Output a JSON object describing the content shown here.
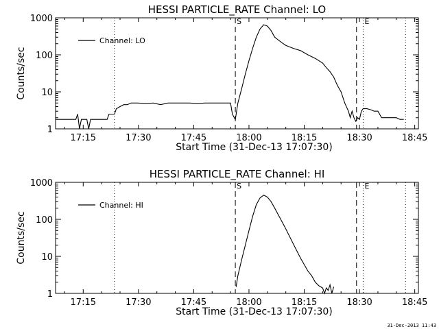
{
  "footer_timestamp": "31-Dec-2013 11:43",
  "chart_data": [
    {
      "type": "line",
      "title": "HESSI PARTICLE_RATE Channel: LO",
      "xlabel": "Start Time (31-Dec-13 17:07:30)",
      "ylabel": "Counts/sec",
      "y_scale": "log",
      "x_unit": "minutes of day",
      "xlim": [
        1027.5,
        1126
      ],
      "ylim": [
        1,
        1000
      ],
      "x_ticks": [
        1035,
        1050,
        1065,
        1080,
        1095,
        1110,
        1125
      ],
      "x_tick_labels": [
        "17:15",
        "17:30",
        "17:45",
        "18:00",
        "18:15",
        "18:30",
        "18:45"
      ],
      "y_ticks": [
        1,
        10,
        100,
        1000
      ],
      "y_tick_labels": [
        "1",
        "10",
        "100",
        "1000"
      ],
      "grid": false,
      "legend": {
        "position": "top-left",
        "entries": [
          "Channel: LO"
        ]
      },
      "vlines": [
        {
          "x": 1043.5,
          "style": "dotted"
        },
        {
          "x": 1076.3,
          "style": "dashed",
          "label": "S"
        },
        {
          "x": 1109.2,
          "style": "dashed"
        },
        {
          "x": 1111.0,
          "style": "dotted",
          "label": "E"
        },
        {
          "x": 1122.5,
          "style": "dotted"
        }
      ],
      "series": [
        {
          "name": "Channel: LO",
          "color": "#000000",
          "x": [
            1027.5,
            1030,
            1033,
            1033.5,
            1034,
            1034.5,
            1035,
            1036,
            1036.5,
            1037,
            1037.5,
            1038,
            1040,
            1041.5,
            1042,
            1043.5,
            1044,
            1045,
            1046,
            1047,
            1048,
            1050,
            1052,
            1054,
            1056,
            1058,
            1060,
            1062,
            1064,
            1066,
            1068,
            1070,
            1072,
            1074,
            1075,
            1075.5,
            1076,
            1076.3,
            1077,
            1078,
            1079,
            1080,
            1081,
            1082,
            1083,
            1084,
            1085,
            1086,
            1087,
            1088,
            1089,
            1090,
            1092,
            1094,
            1096,
            1098,
            1100,
            1101,
            1102,
            1103,
            1104,
            1105,
            1106,
            1107,
            1107.5,
            1108,
            1108.5,
            1109,
            1109.5,
            1110,
            1110.5,
            1111,
            1111.5,
            1112,
            1113,
            1114,
            1115,
            1116,
            1117,
            1118,
            1119,
            1120,
            1121,
            1122
          ],
          "y": [
            1.8,
            1.8,
            1.8,
            2.5,
            1.0,
            1.8,
            1.8,
            1.8,
            1.0,
            1.8,
            1.8,
            1.8,
            1.8,
            1.8,
            2.5,
            2.5,
            3.5,
            4.0,
            4.5,
            4.5,
            5.0,
            5.0,
            4.8,
            5.0,
            4.5,
            5.0,
            5.0,
            5.0,
            5.0,
            4.8,
            5.0,
            5.0,
            5.0,
            5.0,
            5.0,
            2.5,
            2.0,
            1.8,
            5.0,
            12,
            30,
            70,
            150,
            300,
            500,
            650,
            600,
            450,
            300,
            250,
            210,
            180,
            150,
            130,
            100,
            80,
            60,
            45,
            35,
            25,
            15,
            10,
            5.0,
            3.0,
            2.0,
            3.0,
            2.0,
            1.6,
            2.0,
            1.8,
            3.0,
            3.5,
            3.5,
            3.5,
            3.3,
            3.0,
            3.0,
            2.0,
            2.0,
            2.0,
            2.0,
            2.0,
            1.8,
            1.8
          ]
        }
      ]
    },
    {
      "type": "line",
      "title": "HESSI PARTICLE_RATE Channel: HI",
      "xlabel": "Start Time (31-Dec-13 17:07:30)",
      "ylabel": "Counts/sec",
      "y_scale": "log",
      "x_unit": "minutes of day",
      "xlim": [
        1027.5,
        1126
      ],
      "ylim": [
        1,
        1000
      ],
      "x_ticks": [
        1035,
        1050,
        1065,
        1080,
        1095,
        1110,
        1125
      ],
      "x_tick_labels": [
        "17:15",
        "17:30",
        "17:45",
        "18:00",
        "18:15",
        "18:30",
        "18:45"
      ],
      "y_ticks": [
        1,
        10,
        100,
        1000
      ],
      "y_tick_labels": [
        "1",
        "10",
        "100",
        "1000"
      ],
      "grid": false,
      "legend": {
        "position": "top-left",
        "entries": [
          "Channel: HI"
        ]
      },
      "vlines": [
        {
          "x": 1043.5,
          "style": "dotted"
        },
        {
          "x": 1076.3,
          "style": "dashed",
          "label": "S"
        },
        {
          "x": 1109.2,
          "style": "dashed"
        },
        {
          "x": 1111.0,
          "style": "dotted",
          "label": "E"
        },
        {
          "x": 1122.5,
          "style": "dotted"
        }
      ],
      "series": [
        {
          "name": "Channel: HI",
          "color": "#000000",
          "x": [
            1076.5,
            1077,
            1078,
            1079,
            1080,
            1081,
            1082,
            1083,
            1084,
            1085,
            1086,
            1087,
            1088,
            1089,
            1090,
            1091,
            1092,
            1093,
            1094,
            1095,
            1096,
            1097,
            1098,
            1099,
            1100,
            1100.5,
            1101,
            1101.5,
            1102,
            1102.5,
            1103
          ],
          "y": [
            1.5,
            3,
            8,
            20,
            50,
            120,
            250,
            380,
            450,
            400,
            300,
            200,
            130,
            85,
            55,
            35,
            22,
            14,
            9,
            6,
            4,
            3,
            2,
            1.6,
            1.4,
            1.0,
            1.4,
            1.2,
            1.7,
            1.0,
            1.5
          ]
        }
      ]
    }
  ]
}
